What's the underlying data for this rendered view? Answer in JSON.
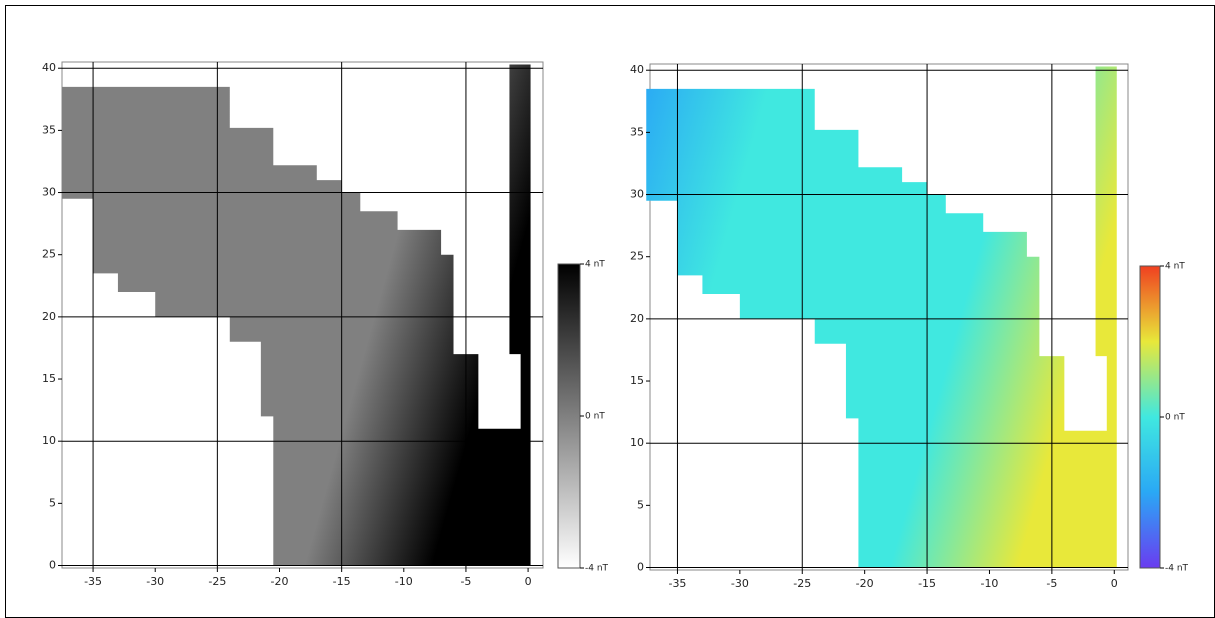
{
  "chart_data": [
    {
      "type": "heatmap",
      "xlim": [
        -37.5,
        1.2
      ],
      "ylim": [
        -0.2,
        40.5
      ],
      "xticks": [
        -35,
        -30,
        -25,
        -20,
        -15,
        -10,
        -5,
        0
      ],
      "yticks": [
        0,
        5,
        10,
        15,
        20,
        25,
        30,
        35,
        40
      ],
      "grid_x": [
        -35,
        -25,
        -15,
        -5
      ],
      "grid_y": [
        0,
        10,
        20,
        30,
        40
      ],
      "colorbar": {
        "range": [
          -4,
          4
        ],
        "colors": [
          "#ffffff",
          "#808080",
          "#000000"
        ],
        "ticks": [
          {
            "value": 4,
            "label": "4 nT"
          },
          {
            "value": 0,
            "label": "0 nT"
          },
          {
            "value": -4,
            "label": "-4 nT"
          }
        ]
      }
    },
    {
      "type": "heatmap",
      "xlim": [
        -37.2,
        1.1
      ],
      "ylim": [
        -0.2,
        40.5
      ],
      "xticks": [
        -35,
        -30,
        -25,
        -20,
        -15,
        -10,
        -5,
        0
      ],
      "yticks": [
        0,
        5,
        10,
        15,
        20,
        25,
        30,
        35,
        40
      ],
      "grid_x": [
        -35,
        -25,
        -15,
        -5
      ],
      "grid_y": [
        0,
        10,
        20,
        30,
        40
      ],
      "colorbar": {
        "range": [
          -4,
          4
        ],
        "colors": [
          "#6a3cf0",
          "#2aa8f5",
          "#40e8e0",
          "#e8e83a",
          "#f04020"
        ],
        "ticks": [
          {
            "value": 4,
            "label": "4 nT"
          },
          {
            "value": 0,
            "label": "0 nT"
          },
          {
            "value": -4,
            "label": "-4 nT"
          }
        ]
      }
    }
  ]
}
